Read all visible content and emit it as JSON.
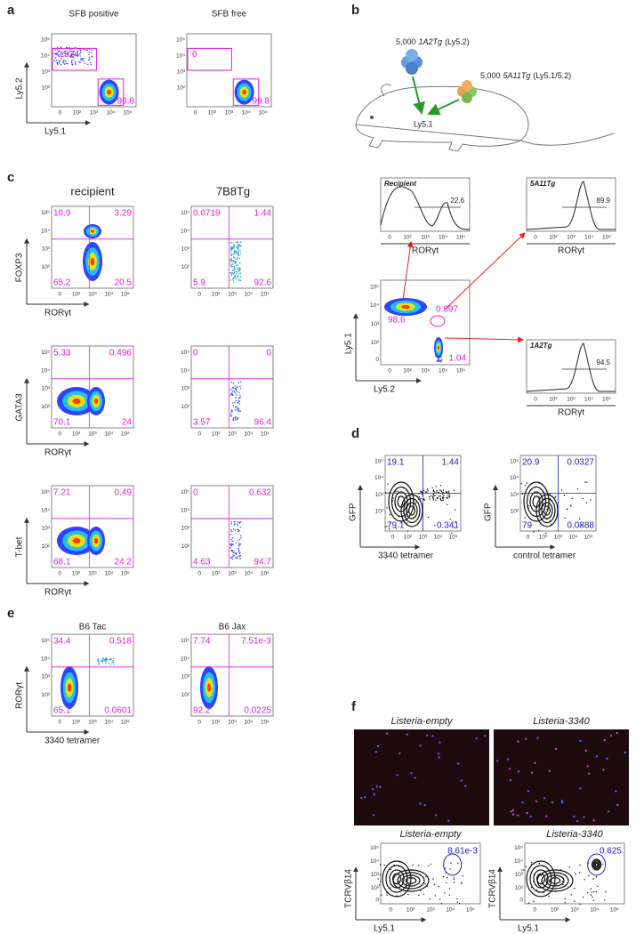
{
  "tick_labels": [
    "0",
    "10²",
    "10³",
    "10⁴",
    "10⁵"
  ],
  "panels": {
    "a": {
      "label": "a",
      "xlabel": "Ly5.1",
      "ylabel": "Ly5.2",
      "plots": [
        {
          "title": "SFB positive",
          "gates": [
            "0.924",
            "98.8"
          ]
        },
        {
          "title": "SFB free",
          "gates": [
            "0",
            "99.8"
          ]
        }
      ]
    },
    "b": {
      "label": "b",
      "donor1": {
        "count": "5,000",
        "line": "1A2Tg",
        "marker": "(Ly5.2)"
      },
      "donor2": {
        "count": "5,000",
        "line": "5A11Tg",
        "marker": "(Ly5.1/5.2)"
      },
      "recipient_label": "Ly5.1",
      "hist_xlabel": "RORγt",
      "histograms": [
        {
          "title": "Recipient",
          "value": "22.6"
        },
        {
          "title": "5A11Tg",
          "value": "89.9"
        },
        {
          "title": "1A2Tg",
          "value": "94.5"
        }
      ],
      "dot": {
        "xlabel": "Ly5.2",
        "ylabel": "Ly5.1",
        "gates": [
          "98.6",
          "0.097",
          "1.04"
        ]
      }
    },
    "c": {
      "label": "c",
      "columns": [
        "recipient",
        "7B8Tg"
      ],
      "xlabel": "RORγt",
      "rows": [
        {
          "ylabel": "FOXP3",
          "gates": [
            [
              "10.9",
              "3.29",
              "65.2",
              "20.5"
            ],
            [
              "0.0719",
              "1.44",
              "5.9",
              "92.6"
            ]
          ]
        },
        {
          "ylabel": "GATA3",
          "gates": [
            [
              "5.33",
              "0.496",
              "70.1",
              "24"
            ],
            [
              "0",
              "0",
              "3.57",
              "96.4"
            ]
          ]
        },
        {
          "ylabel": "T-bet",
          "gates": [
            [
              "7.21",
              "0.49",
              "68.1",
              "24.2"
            ],
            [
              "0",
              "0.632",
              "4.63",
              "94.7"
            ]
          ]
        }
      ]
    },
    "d": {
      "label": "d",
      "ylabel": "GFP",
      "plots": [
        {
          "xlabel": "3340 tetramer",
          "gates": [
            "19.1",
            "1.44",
            "79.1",
            "0.341"
          ]
        },
        {
          "xlabel": "control tetramer",
          "gates": [
            "20.9",
            "0.0327",
            "79",
            "0.0888"
          ]
        }
      ]
    },
    "e": {
      "label": "e",
      "ylabel": "RORγt",
      "xlabel": "3340 tetramer",
      "plots": [
        {
          "title": "B6 Tac",
          "gates": [
            "34.4",
            "0.518",
            "65.1",
            "0.0601"
          ]
        },
        {
          "title": "B6 Jax",
          "gates": [
            "7.74",
            "7.51e-3",
            "92.2",
            "0.0225"
          ]
        }
      ]
    },
    "f": {
      "label": "f",
      "images": [
        "Listeria-empty",
        "Listeria-3340"
      ],
      "ylabel": "TCRVβ14",
      "xlabel": "Ly5.1",
      "plots": [
        {
          "title": "Listeria-empty",
          "gate": "8.61e-3"
        },
        {
          "title": "Listeria-3340",
          "gate": "0.625"
        }
      ]
    }
  }
}
